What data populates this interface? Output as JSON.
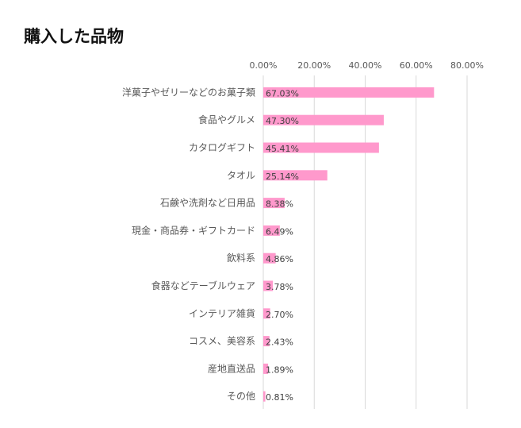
{
  "chart_data": {
    "type": "bar",
    "orientation": "horizontal",
    "title": "購入した品物",
    "categories": [
      "洋菓子やゼリーなどのお菓子類",
      "食品やグルメ",
      "カタログギフト",
      "タオル",
      "石鹸や洗剤など日用品",
      "現金・商品券・ギフトカード",
      "飲料系",
      "食器などテーブルウェア",
      "インテリア雑貨",
      "コスメ、美容系",
      "産地直送品",
      "その他"
    ],
    "values": [
      67.03,
      47.3,
      45.41,
      25.14,
      8.38,
      6.49,
      4.86,
      3.78,
      2.7,
      2.43,
      1.89,
      0.81
    ],
    "value_labels": [
      "67.03%",
      "47.30%",
      "45.41%",
      "25.14%",
      "8.38%",
      "6.49%",
      "4.86%",
      "3.78%",
      "2.70%",
      "2.43%",
      "1.89%",
      "0.81%"
    ],
    "xlim": [
      0,
      80
    ],
    "xticks": [
      0,
      20,
      40,
      60,
      80
    ],
    "xtick_labels": [
      "0.00%",
      "20.00%",
      "40.00%",
      "60.00%",
      "80.00%"
    ],
    "axis_position": "top",
    "grid": true,
    "bar_color": "#ff99cc",
    "xlabel": "",
    "ylabel": ""
  }
}
